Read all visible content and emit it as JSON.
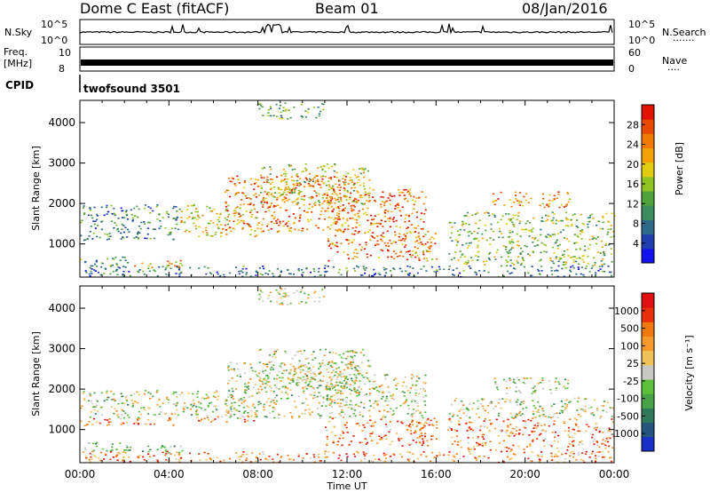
{
  "header": {
    "radar": "Dome C East (fitACF)",
    "beam": "Beam 01",
    "date": "08/Jan/2016"
  },
  "panels": {
    "nsky_label": "N.Sky",
    "nsearch_label": "N.Search",
    "nsearch_marker": "·······",
    "noise_ticks": [
      "10^5",
      "10^0"
    ],
    "freq_label": "Freq.",
    "freq_unit": "[MHz]",
    "freq_ticks": [
      "10",
      "8"
    ],
    "nave_label": "Nave",
    "nave_marker": "····",
    "nave_ticks": [
      "60",
      "0"
    ],
    "cpid_label": "CPID",
    "cpid_value": "twofsound 3501"
  },
  "chart_data": [
    {
      "type": "heatmap",
      "title": "",
      "xlabel": "Time UT",
      "ylabel": "Slant Range [km]",
      "x_ticks": [
        "00:00",
        "04:00",
        "08:00",
        "12:00",
        "16:00",
        "20:00",
        "00:00"
      ],
      "xlim_hours": [
        0,
        24
      ],
      "y_ticks": [
        "1000",
        "2000",
        "3000",
        "4000"
      ],
      "ylim": [
        180,
        4550
      ],
      "colorbar_label": "Power [dB]",
      "colorbar_ticks": [
        "4",
        "8",
        "12",
        "16",
        "20",
        "24",
        "28"
      ],
      "colorbar_range": [
        0,
        32
      ],
      "colorscale": [
        "#1111ee",
        "#1f3fb0",
        "#2a6a8a",
        "#3d8c5c",
        "#4fa33a",
        "#8ec321",
        "#e0cc10",
        "#f5a10a",
        "#f07a05",
        "#e84a02",
        "#e01202"
      ]
    },
    {
      "type": "heatmap",
      "title": "",
      "xlabel": "Time UT",
      "ylabel": "Slant Range [km]",
      "x_ticks": [
        "00:00",
        "04:00",
        "08:00",
        "12:00",
        "16:00",
        "20:00",
        "00:00"
      ],
      "xlim_hours": [
        0,
        24
      ],
      "y_ticks": [
        "1000",
        "2000",
        "3000",
        "4000"
      ],
      "ylim": [
        180,
        4550
      ],
      "colorbar_label": "Velocity [m s⁻¹]",
      "colorbar_ticks": [
        "1000",
        "500",
        "100",
        "25",
        "-25",
        "-100",
        "-500",
        "-1000"
      ],
      "colorscale": [
        "#1a2fc8",
        "#23557d",
        "#2f7a5a",
        "#48a347",
        "#5cc03a",
        "#c7c7c3",
        "#f2c25a",
        "#f59a2a",
        "#f07a10",
        "#e8300a",
        "#e01010"
      ]
    }
  ],
  "scatter_regions": [
    {
      "t0": 0.0,
      "t1": 4.5,
      "r0": 1100,
      "r1": 2000,
      "lvl": 0.3
    },
    {
      "t0": 0.0,
      "t1": 2.2,
      "r0": 450,
      "r1": 700,
      "lvl": 0.35
    },
    {
      "t0": 2.2,
      "t1": 4.6,
      "r0": 420,
      "r1": 620,
      "lvl": 0.65
    },
    {
      "t0": 4.5,
      "t1": 8.0,
      "r0": 1200,
      "r1": 2000,
      "lvl": 0.6
    },
    {
      "t0": 6.5,
      "t1": 12.5,
      "r0": 1300,
      "r1": 2700,
      "lvl": 0.78
    },
    {
      "t0": 8.0,
      "t1": 13.0,
      "r0": 2000,
      "r1": 3000,
      "lvl": 0.55
    },
    {
      "t0": 11.0,
      "t1": 15.5,
      "r0": 600,
      "r1": 2400,
      "lvl": 0.8
    },
    {
      "t0": 14.8,
      "t1": 16.0,
      "r0": 600,
      "r1": 1400,
      "lvl": 0.7
    },
    {
      "t0": 16.5,
      "t1": 24.0,
      "r0": 500,
      "r1": 1800,
      "lvl": 0.48
    },
    {
      "t0": 18.5,
      "t1": 22.0,
      "r0": 1900,
      "r1": 2300,
      "lvl": 0.72
    },
    {
      "t0": 0.0,
      "t1": 24.0,
      "r0": 200,
      "r1": 480,
      "lvl": 0.25
    },
    {
      "t0": 8.0,
      "t1": 11.0,
      "r0": 4100,
      "r1": 4500,
      "lvl": 0.4
    }
  ]
}
